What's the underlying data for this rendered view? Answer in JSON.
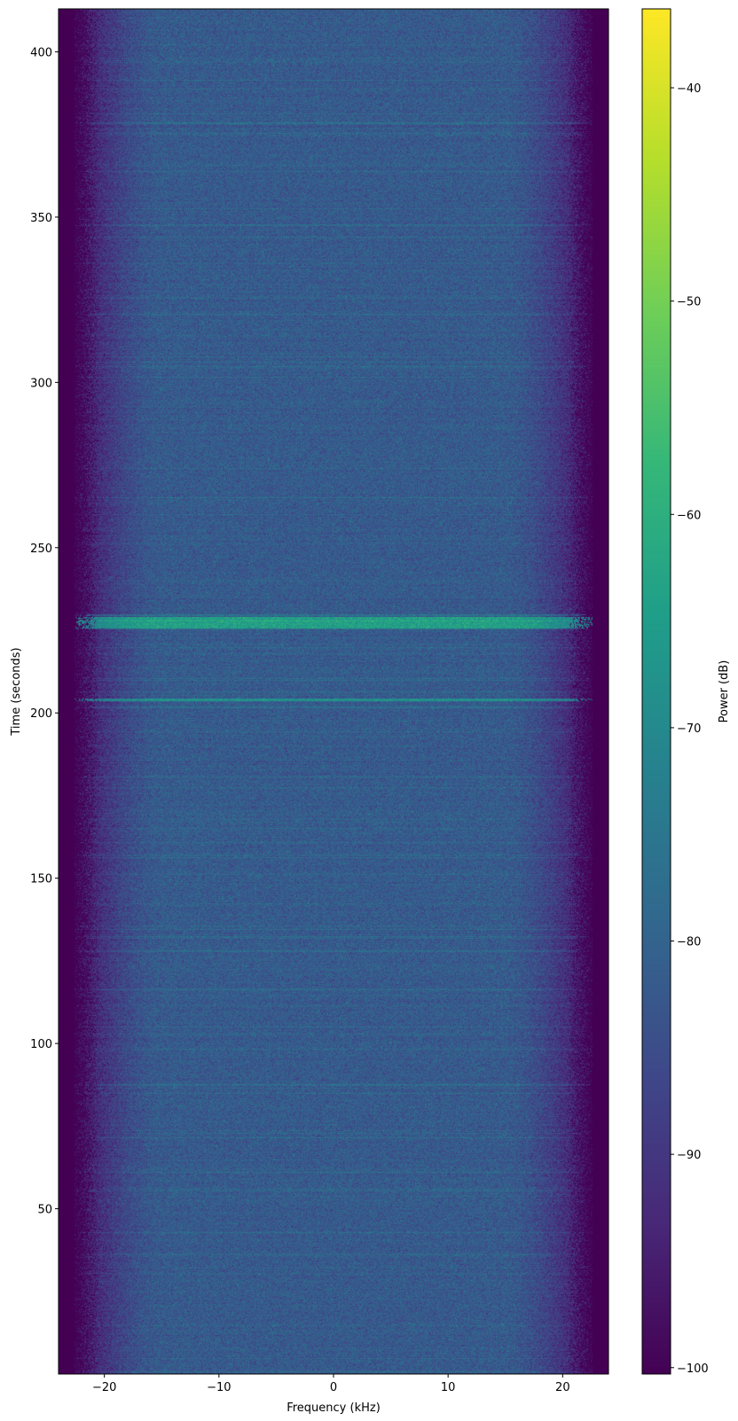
{
  "chart_data": {
    "type": "heatmap",
    "subtype": "spectrogram",
    "title": "",
    "xlabel": "Frequency (kHz)",
    "ylabel": "Time (seconds)",
    "xlim": [
      -24,
      24
    ],
    "ylim": [
      0,
      413
    ],
    "xticks": [
      -20,
      -10,
      0,
      10,
      20
    ],
    "xtick_labels": [
      "−20",
      "−10",
      "0",
      "10",
      "20"
    ],
    "yticks": [
      50,
      100,
      150,
      200,
      250,
      300,
      350,
      400
    ],
    "ytick_labels": [
      "50",
      "100",
      "150",
      "200",
      "250",
      "300",
      "350",
      "400"
    ],
    "colormap": "viridis",
    "colorbar": {
      "label": "Power (dB)",
      "range": [
        -100.3,
        -36.3
      ],
      "ticks": [
        -40,
        -50,
        -60,
        -70,
        -80,
        -90,
        -100
      ],
      "tick_labels": [
        "−40",
        "−50",
        "−60",
        "−70",
        "−80",
        "−90",
        "−100"
      ]
    },
    "background_level_db": -82,
    "passband_edge_khz": 22,
    "features": [
      {
        "kind": "broadband burst",
        "time_start": 225.5,
        "time_end": 229,
        "level_db": -64
      },
      {
        "kind": "broadband line",
        "time_start": 203.6,
        "time_end": 204.4,
        "level_db": -68
      },
      {
        "kind": "faint line",
        "time_start": 229.3,
        "time_end": 229.7,
        "level_db": -76
      }
    ],
    "grid": false
  }
}
